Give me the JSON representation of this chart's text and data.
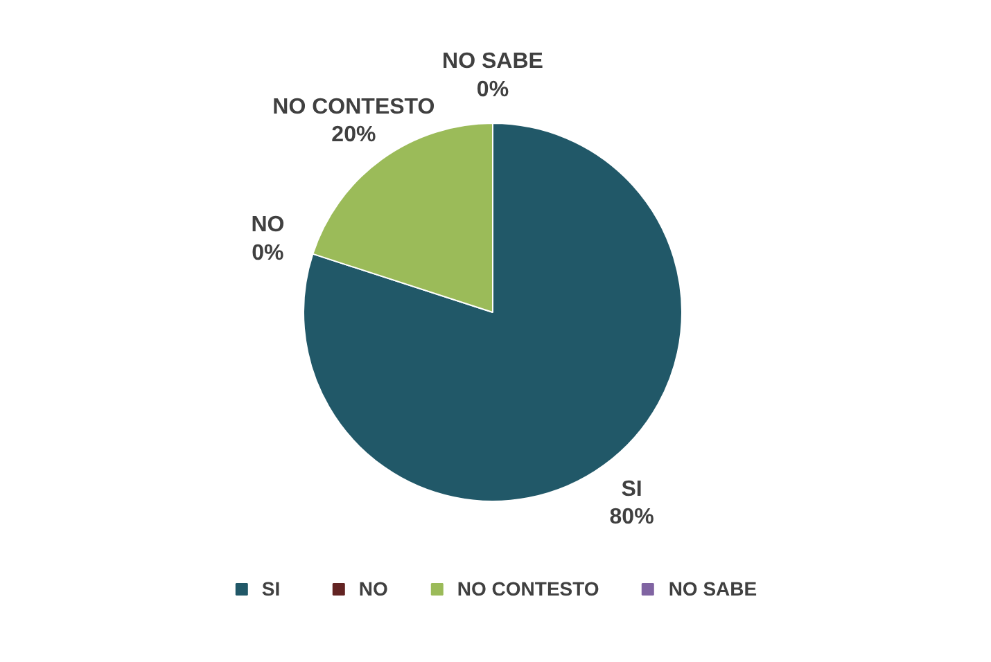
{
  "chart_data": {
    "type": "pie",
    "categories": [
      "SI",
      "NO",
      "NO CONTESTO",
      "NO SABE"
    ],
    "values": [
      80,
      0,
      20,
      0
    ],
    "colors": [
      "#215868",
      "#632423",
      "#9bbb59",
      "#8064a2"
    ],
    "value_labels": [
      "80%",
      "0%",
      "20%",
      "0%"
    ],
    "legend": "bottom"
  }
}
